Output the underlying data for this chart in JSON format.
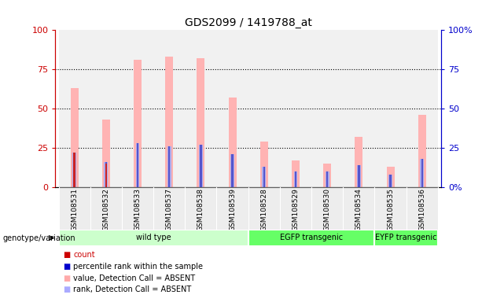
{
  "title": "GDS2099 / 1419788_at",
  "samples": [
    "GSM108531",
    "GSM108532",
    "GSM108533",
    "GSM108537",
    "GSM108538",
    "GSM108539",
    "GSM108528",
    "GSM108529",
    "GSM108530",
    "GSM108534",
    "GSM108535",
    "GSM108536"
  ],
  "pink_bars": [
    63,
    43,
    81,
    83,
    82,
    57,
    29,
    17,
    15,
    32,
    13,
    46
  ],
  "red_bars": [
    22,
    15,
    0,
    0,
    0,
    0,
    0,
    0,
    0,
    0,
    0,
    0
  ],
  "blue_bars": [
    22,
    16,
    28,
    26,
    27,
    21,
    13,
    10,
    10,
    14,
    8,
    18
  ],
  "lightblue_bars": [
    22,
    16,
    28,
    26,
    27,
    21,
    13,
    10,
    10,
    14,
    8,
    18
  ],
  "groups": [
    {
      "label": "wild type",
      "start": 0,
      "end": 5,
      "color": "#ccffcc"
    },
    {
      "label": "EGFP transgenic",
      "start": 6,
      "end": 9,
      "color": "#66ff66"
    },
    {
      "label": "EYFP transgenic",
      "start": 10,
      "end": 11,
      "color": "#66ff66"
    }
  ],
  "ylim": [
    0,
    100
  ],
  "yticks_left": [
    "0",
    "25",
    "50",
    "75",
    "100"
  ],
  "yticks_right": [
    "0%",
    "25",
    "50",
    "75",
    "100%"
  ],
  "legend_items": [
    {
      "label": "count",
      "color": "#cc0000",
      "marker_color": "#cc0000"
    },
    {
      "label": "percentile rank within the sample",
      "color": "#000000",
      "marker_color": "#0000cc"
    },
    {
      "label": "value, Detection Call = ABSENT",
      "color": "#000000",
      "marker_color": "#ffaaaa"
    },
    {
      "label": "rank, Detection Call = ABSENT",
      "color": "#000000",
      "marker_color": "#aaaaff"
    }
  ],
  "pink_color": "#ffb3b3",
  "red_color": "#cc2222",
  "blue_color": "#5555cc",
  "lightblue_color": "#aaaaee",
  "left_axis_color": "#cc0000",
  "right_axis_color": "#0000cc",
  "col_bg_color": "#d8d8d8",
  "pink_bar_width": 0.25,
  "red_bar_width": 0.06,
  "blue_bar_width": 0.06,
  "lightblue_bar_width": 0.12
}
